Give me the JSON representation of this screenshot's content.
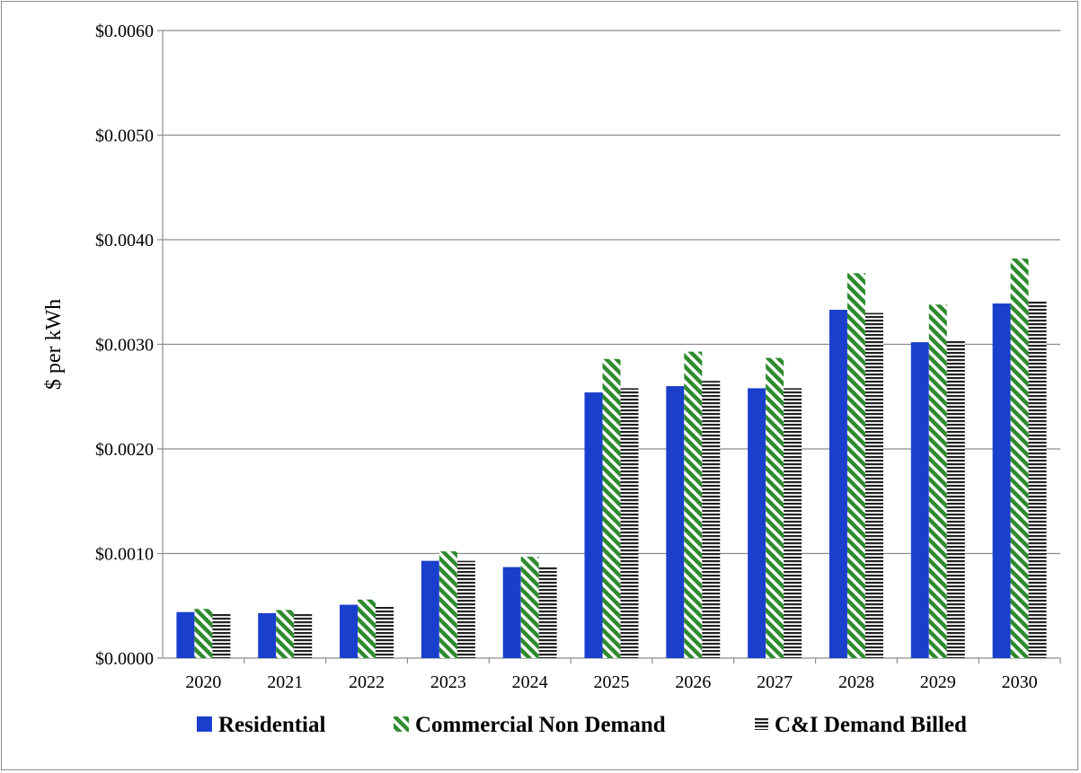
{
  "chart_data": {
    "type": "bar",
    "title": "",
    "xlabel": "",
    "ylabel": "$ per kWh",
    "ylim": [
      0,
      0.006
    ],
    "yticks": [
      0.0,
      0.001,
      0.002,
      0.003,
      0.004,
      0.005,
      0.006
    ],
    "ytick_labels": [
      "$0.0000",
      "$0.0010",
      "$0.0020",
      "$0.0030",
      "$0.0040",
      "$0.0050",
      "$0.0060"
    ],
    "grid": true,
    "legend_position": "bottom",
    "categories": [
      "2020",
      "2021",
      "2022",
      "2023",
      "2024",
      "2025",
      "2026",
      "2027",
      "2028",
      "2029",
      "2030"
    ],
    "series": [
      {
        "name": "Residential",
        "color": "#1a3fcc",
        "pattern": "solid",
        "values": [
          0.00044,
          0.00043,
          0.00051,
          0.00093,
          0.00087,
          0.00254,
          0.0026,
          0.00258,
          0.00333,
          0.00302,
          0.00339
        ]
      },
      {
        "name": "Commercial Non Demand",
        "color": "#2e8b2e",
        "pattern": "diagonal-stripes",
        "values": [
          0.00047,
          0.00046,
          0.00056,
          0.00102,
          0.00097,
          0.00286,
          0.00293,
          0.00287,
          0.00368,
          0.00338,
          0.00382
        ]
      },
      {
        "name": "C&I Demand Billed",
        "color": "#222222",
        "pattern": "horizontal-stripes",
        "values": [
          0.00043,
          0.00042,
          0.0005,
          0.00093,
          0.00087,
          0.00258,
          0.00265,
          0.00258,
          0.0033,
          0.00303,
          0.00342
        ]
      }
    ]
  }
}
